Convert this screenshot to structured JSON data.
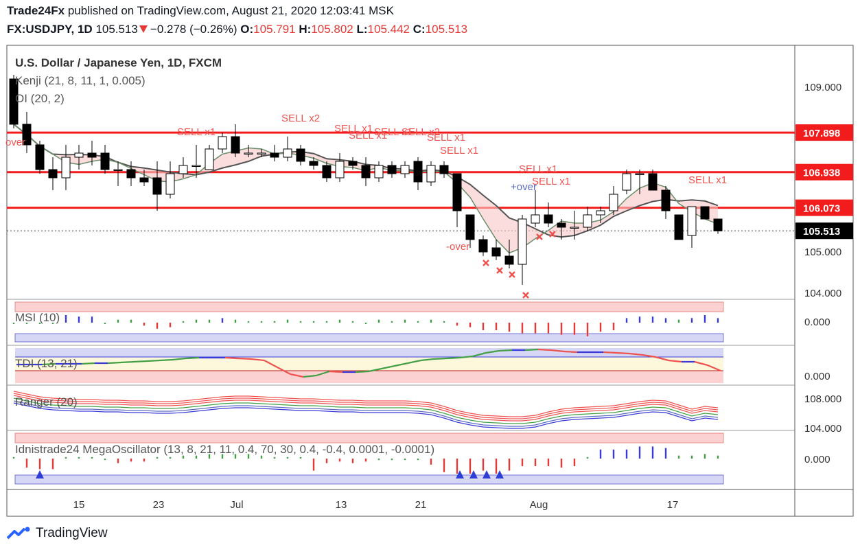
{
  "header": {
    "publisher": "Trade24Fx",
    "published_text": "published on TradingView.com, August 21, 2020 12:03:41 MSK",
    "symbol": "FX:USDJPY, 1D",
    "last": "105.513",
    "change": "−0.278 (−0.26%)",
    "o_label": "O:",
    "o": "105.791",
    "h_label": "H:",
    "h": "105.802",
    "l_label": "L:",
    "l": "105.442",
    "c_label": "C:",
    "c": "105.513"
  },
  "legends": {
    "main": "U.S. Dollar / Japanese Yen, 1D, FXCM",
    "kenji": "Kenji (21, 8, 11, 1, 0.005)",
    "oi": "OI (20, 2)",
    "msi": "MSI (10)",
    "tdi": "TDI (13, 21)",
    "ranger": "Ranger (20)",
    "mega": "Idnistrade24 MegaOscillator (13, 8, 21, 11, 0.4, 70, 30, 0.4, -0.4, 0.0001, -0.0001)"
  },
  "price_axis": {
    "ticks": [
      "109.000",
      "105.000",
      "104.000"
    ],
    "levels": [
      {
        "label": "107.898",
        "value": 107.898
      },
      {
        "label": "106.938",
        "value": 106.938
      },
      {
        "label": "106.073",
        "value": 106.073
      }
    ],
    "last_label": "105.513",
    "last_value": 105.513,
    "msi_tick": "0.000",
    "tdi_tick": "0.000",
    "ranger_ticks": [
      "108.000",
      "104.000"
    ],
    "mega_tick": "0.000"
  },
  "time_axis": [
    "15",
    "23",
    "Jul",
    "13",
    "21",
    "Aug",
    "17"
  ],
  "annotations": [
    "SELL x1",
    "SELL x2",
    "SELL x1",
    "SELL x1",
    "SELL x1",
    "SELL x2",
    "SELL x1",
    "SELL x1",
    "SELL x1",
    "SELL x1",
    "SELL x1",
    "SELL x1",
    "+over",
    "-over",
    "over"
  ],
  "colors": {
    "level_line": "#f21c1c",
    "bull": "#ffffff",
    "bear": "#000000",
    "cloud": "#f9c6c6",
    "sell_text": "#ef5350",
    "cross": "#ef5350",
    "buy_arrow": "#2f3fd6",
    "tdi_up": "#43a047",
    "tdi_down": "#ef5350",
    "tdi_mid": "#3a3ad8"
  },
  "footer": {
    "brand": "TradingView",
    "logo_icon": "tradingview-logo-icon"
  },
  "chart_data": {
    "type": "candlestick",
    "symbol": "FX:USDJPY",
    "interval": "1D",
    "ylim": [
      103.8,
      109.8
    ],
    "candles": [
      {
        "o": 109.2,
        "h": 109.3,
        "l": 108.0,
        "c": 108.1
      },
      {
        "o": 108.1,
        "h": 108.4,
        "l": 107.4,
        "c": 107.6
      },
      {
        "o": 107.6,
        "h": 107.7,
        "l": 106.9,
        "c": 107.0
      },
      {
        "o": 107.0,
        "h": 107.3,
        "l": 106.5,
        "c": 106.8
      },
      {
        "o": 106.8,
        "h": 107.6,
        "l": 106.5,
        "c": 107.3
      },
      {
        "o": 107.3,
        "h": 107.6,
        "l": 107.0,
        "c": 107.4
      },
      {
        "o": 107.4,
        "h": 107.7,
        "l": 107.1,
        "c": 107.3
      },
      {
        "o": 107.4,
        "h": 107.6,
        "l": 106.9,
        "c": 107.0
      },
      {
        "o": 107.0,
        "h": 107.2,
        "l": 106.6,
        "c": 107.0
      },
      {
        "o": 107.0,
        "h": 107.2,
        "l": 106.6,
        "c": 106.8
      },
      {
        "o": 106.8,
        "h": 107.0,
        "l": 106.6,
        "c": 106.7
      },
      {
        "o": 106.8,
        "h": 107.2,
        "l": 106.0,
        "c": 106.4
      },
      {
        "o": 106.4,
        "h": 107.2,
        "l": 106.3,
        "c": 106.9
      },
      {
        "o": 106.9,
        "h": 107.3,
        "l": 106.8,
        "c": 107.1
      },
      {
        "o": 107.1,
        "h": 107.6,
        "l": 106.8,
        "c": 107.1
      },
      {
        "o": 107.0,
        "h": 107.6,
        "l": 107.0,
        "c": 107.5
      },
      {
        "o": 107.5,
        "h": 107.9,
        "l": 107.4,
        "c": 107.8
      },
      {
        "o": 107.8,
        "h": 108.1,
        "l": 107.3,
        "c": 107.4
      },
      {
        "o": 107.4,
        "h": 107.6,
        "l": 107.3,
        "c": 107.4
      },
      {
        "o": 107.4,
        "h": 107.5,
        "l": 107.3,
        "c": 107.4
      },
      {
        "o": 107.4,
        "h": 107.6,
        "l": 107.2,
        "c": 107.3
      },
      {
        "o": 107.3,
        "h": 107.8,
        "l": 107.2,
        "c": 107.5
      },
      {
        "o": 107.5,
        "h": 107.6,
        "l": 107.1,
        "c": 107.2
      },
      {
        "o": 107.2,
        "h": 107.3,
        "l": 107.0,
        "c": 107.1
      },
      {
        "o": 107.1,
        "h": 107.2,
        "l": 106.7,
        "c": 106.8
      },
      {
        "o": 106.8,
        "h": 107.4,
        "l": 106.7,
        "c": 107.2
      },
      {
        "o": 107.2,
        "h": 107.3,
        "l": 107.0,
        "c": 107.1
      },
      {
        "o": 107.1,
        "h": 107.3,
        "l": 106.6,
        "c": 106.8
      },
      {
        "o": 106.8,
        "h": 107.2,
        "l": 106.7,
        "c": 107.1
      },
      {
        "o": 107.1,
        "h": 107.2,
        "l": 106.8,
        "c": 106.9
      },
      {
        "o": 106.9,
        "h": 107.2,
        "l": 106.8,
        "c": 107.1
      },
      {
        "o": 107.2,
        "h": 107.3,
        "l": 106.5,
        "c": 106.7
      },
      {
        "o": 106.7,
        "h": 107.2,
        "l": 106.6,
        "c": 107.1
      },
      {
        "o": 107.1,
        "h": 107.2,
        "l": 106.8,
        "c": 106.9
      },
      {
        "o": 106.9,
        "h": 106.9,
        "l": 105.6,
        "c": 106.0
      },
      {
        "o": 105.9,
        "h": 105.9,
        "l": 105.1,
        "c": 105.3
      },
      {
        "o": 105.3,
        "h": 105.4,
        "l": 104.9,
        "c": 105.0
      },
      {
        "o": 105.1,
        "h": 105.3,
        "l": 104.8,
        "c": 104.9
      },
      {
        "o": 104.9,
        "h": 105.3,
        "l": 104.6,
        "c": 104.7
      },
      {
        "o": 104.7,
        "h": 105.9,
        "l": 104.2,
        "c": 105.8
      },
      {
        "o": 105.7,
        "h": 106.5,
        "l": 105.6,
        "c": 105.9
      },
      {
        "o": 105.9,
        "h": 106.2,
        "l": 105.6,
        "c": 105.7
      },
      {
        "o": 105.7,
        "h": 105.8,
        "l": 105.3,
        "c": 105.6
      },
      {
        "o": 105.6,
        "h": 106.0,
        "l": 105.3,
        "c": 105.6
      },
      {
        "o": 105.6,
        "h": 106.1,
        "l": 105.5,
        "c": 105.9
      },
      {
        "o": 105.9,
        "h": 106.1,
        "l": 105.7,
        "c": 106.0
      },
      {
        "o": 106.0,
        "h": 106.6,
        "l": 105.9,
        "c": 106.4
      },
      {
        "o": 106.5,
        "h": 107.0,
        "l": 106.4,
        "c": 106.9
      },
      {
        "o": 106.9,
        "h": 107.0,
        "l": 106.4,
        "c": 106.9
      },
      {
        "o": 106.9,
        "h": 107.0,
        "l": 106.5,
        "c": 106.5
      },
      {
        "o": 106.5,
        "h": 106.6,
        "l": 105.8,
        "c": 106.0
      },
      {
        "o": 105.9,
        "h": 105.9,
        "l": 105.3,
        "c": 105.3
      },
      {
        "o": 105.4,
        "h": 106.1,
        "l": 105.1,
        "c": 106.1
      },
      {
        "o": 106.1,
        "h": 106.1,
        "l": 105.8,
        "c": 105.8
      },
      {
        "o": 105.8,
        "h": 105.8,
        "l": 105.44,
        "c": 105.51
      }
    ],
    "horizontal_levels": [
      107.898,
      106.938,
      106.073
    ],
    "last_price": 105.513,
    "title": "U.S. Dollar / Japanese Yen, 1D, FXCM",
    "x_ticks": [
      "15",
      "23",
      "Jul",
      "13",
      "21",
      "Aug",
      "17"
    ]
  }
}
